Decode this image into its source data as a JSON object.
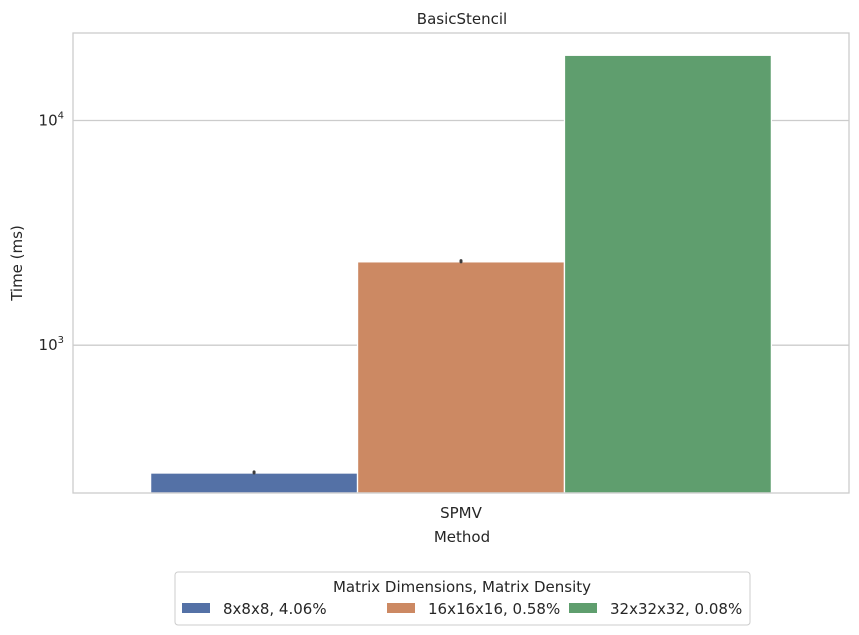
{
  "chart_data": {
    "type": "bar",
    "title": "BasicStencil",
    "xlabel": "Method",
    "ylabel": "Time (ms)",
    "yscale": "log",
    "ylim": [
      220,
      24500
    ],
    "grid": true,
    "categories": [
      "SPMV"
    ],
    "yticks": [
      {
        "value": 1000,
        "base": "10",
        "exp": "3"
      },
      {
        "value": 10000,
        "base": "10",
        "exp": "4"
      }
    ],
    "series": [
      {
        "name": "8x8x8, 4.06%",
        "values": [
          270
        ],
        "error": [
          273
        ],
        "color": "#5471a6"
      },
      {
        "name": "16x16x16, 0.58%",
        "values": [
          2350
        ],
        "error": [
          2380
        ],
        "color": "#cc8963"
      },
      {
        "name": "32x32x32, 0.08%",
        "values": [
          19500
        ],
        "error": null,
        "color": "#5f9e6e"
      }
    ],
    "legend": {
      "title": "Matrix Dimensions, Matrix Density",
      "placement": "bottom-center"
    }
  }
}
